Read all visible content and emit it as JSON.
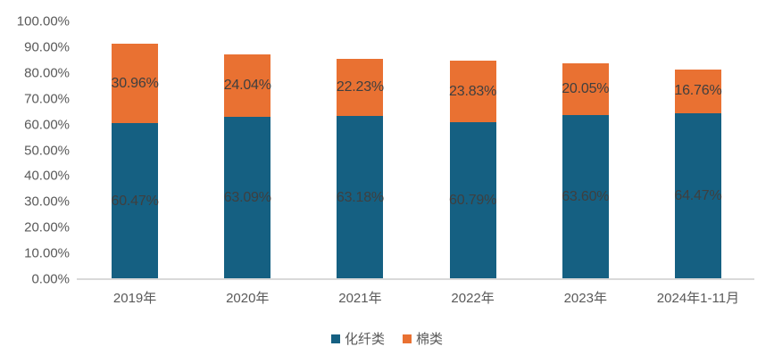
{
  "chart_data": {
    "type": "bar",
    "stacked": true,
    "orientation": "vertical",
    "categories": [
      "2019年",
      "2020年",
      "2021年",
      "2022年",
      "2023年",
      "2024年1-11月"
    ],
    "series": [
      {
        "name": "化纤类",
        "color": "#156082",
        "values": [
          60.47,
          63.09,
          63.18,
          60.79,
          63.6,
          64.47
        ]
      },
      {
        "name": "棉类",
        "color": "#E97132",
        "values": [
          30.96,
          24.04,
          22.23,
          23.83,
          20.05,
          16.76
        ]
      }
    ],
    "y_ticks": [
      "100.00%",
      "90.00%",
      "80.00%",
      "70.00%",
      "60.00%",
      "50.00%",
      "40.00%",
      "30.00%",
      "20.00%",
      "10.00%",
      "0.00%"
    ],
    "ylim": [
      0,
      100
    ],
    "grid": false,
    "legend_position": "bottom",
    "data_label_format": "0.00%",
    "data_label_color": "#3F3F3F",
    "axis_text_color": "#595959",
    "axis_line_color": "#D9D9D9"
  }
}
